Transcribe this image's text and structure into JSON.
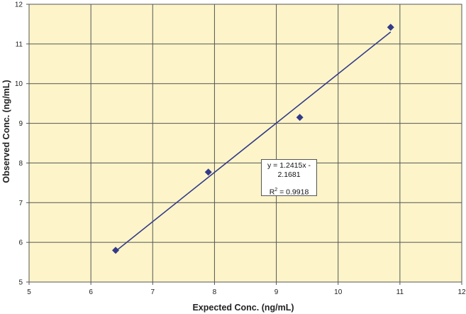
{
  "chart_data": {
    "type": "scatter",
    "xlabel": "Expected Conc.  (ng/mL)",
    "ylabel": "Observed Conc.  (ng/mL)",
    "xlim": [
      5,
      12
    ],
    "ylim": [
      5,
      12
    ],
    "xticks": [
      5,
      6,
      7,
      8,
      9,
      10,
      11,
      12
    ],
    "yticks": [
      5,
      6,
      7,
      8,
      9,
      10,
      11,
      12
    ],
    "grid": true,
    "legend": "none",
    "plot_background": "#fdf5c9",
    "marker_color": "#333a8a",
    "line_color": "#333a8a",
    "series": [
      {
        "x": [
          6.4,
          7.9,
          9.38,
          10.85
        ],
        "y": [
          5.8,
          7.77,
          9.15,
          11.42
        ]
      }
    ],
    "trendline": {
      "slope": 1.2415,
      "intercept": -2.1681,
      "x_range": [
        6.4,
        10.85
      ],
      "equation_line1": "y = 1.2415x -",
      "equation_line2": "2.1681",
      "r2_prefix": "R",
      "r2_sup": "2",
      "r2_value": " = 0.9918"
    }
  }
}
